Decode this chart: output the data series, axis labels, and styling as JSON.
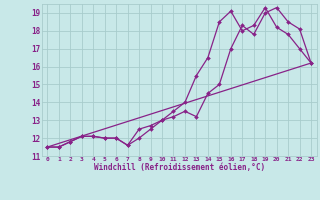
{
  "background_color": "#c8e8e8",
  "grid_color": "#a8cccc",
  "line_color": "#882288",
  "marker_color": "#882288",
  "xlim": [
    -0.5,
    23.5
  ],
  "ylim": [
    11,
    19.5
  ],
  "xtick_vals": [
    0,
    1,
    2,
    3,
    4,
    5,
    6,
    7,
    8,
    9,
    10,
    11,
    12,
    13,
    14,
    15,
    16,
    17,
    18,
    19,
    20,
    21,
    22,
    23
  ],
  "xtick_labels": [
    "0",
    "1",
    "2",
    "3",
    "4",
    "5",
    "6",
    "7",
    "8",
    "9",
    "10",
    "11",
    "12",
    "13",
    "14",
    "15",
    "16",
    "17",
    "18",
    "19",
    "20",
    "21",
    "22",
    "23"
  ],
  "ytick_vals": [
    11,
    12,
    13,
    14,
    15,
    16,
    17,
    18,
    19
  ],
  "ytick_labels": [
    "11",
    "12",
    "13",
    "14",
    "15",
    "16",
    "17",
    "18",
    "19"
  ],
  "xlabel": "Windchill (Refroidissement éolien,°C)",
  "series1_x": [
    0,
    1,
    2,
    3,
    4,
    5,
    6,
    7,
    8,
    9,
    10,
    11,
    12,
    13,
    14,
    15,
    16,
    17,
    18,
    19,
    20,
    21,
    22,
    23
  ],
  "series1_y": [
    11.5,
    11.5,
    11.8,
    12.1,
    12.1,
    12.0,
    12.0,
    11.6,
    12.0,
    12.5,
    13.0,
    13.2,
    13.5,
    13.2,
    14.5,
    15.0,
    17.0,
    18.3,
    17.8,
    19.0,
    19.3,
    18.5,
    18.1,
    16.2
  ],
  "series2_x": [
    0,
    1,
    2,
    3,
    4,
    5,
    6,
    7,
    8,
    9,
    10,
    11,
    12,
    13,
    14,
    15,
    16,
    17,
    18,
    19,
    20,
    21,
    22,
    23
  ],
  "series2_y": [
    11.5,
    11.5,
    11.8,
    12.1,
    12.1,
    12.0,
    12.0,
    11.6,
    12.5,
    12.7,
    13.0,
    13.5,
    14.0,
    15.5,
    16.5,
    18.5,
    19.1,
    18.0,
    18.3,
    19.3,
    18.2,
    17.8,
    17.0,
    16.2
  ],
  "series3_x": [
    0,
    23
  ],
  "series3_y": [
    11.5,
    16.2
  ]
}
